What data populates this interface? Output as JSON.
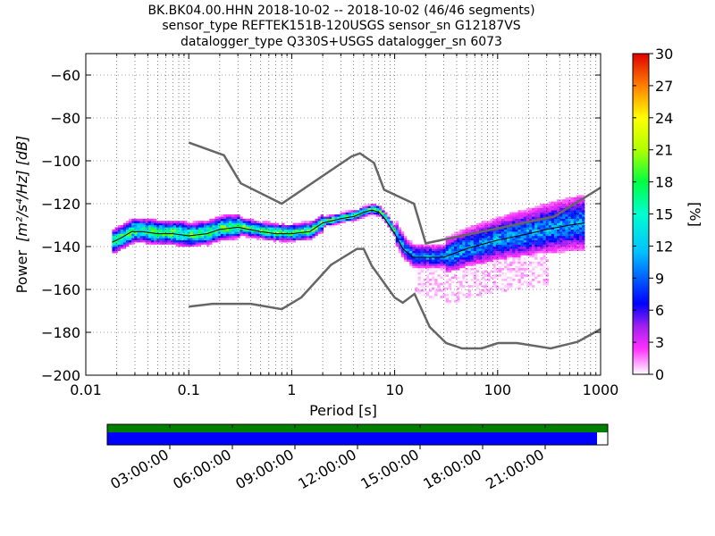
{
  "title_lines": [
    "BK.BK04.00.HHN   2018-10-02 -- 2018-10-02  (46/46 segments)",
    "sensor_type REFTEK151B-120USGS sensor_sn G12187VS",
    "datalogger_type Q330S+USGS datalogger_sn 6073"
  ],
  "colorbar": {
    "label": "[%]",
    "ticks": [
      "0",
      "3",
      "6",
      "9",
      "12",
      "15",
      "18",
      "21",
      "24",
      "27",
      "30"
    ],
    "range": [
      0,
      30
    ]
  },
  "timeline": {
    "labels": [
      "03:00:00",
      "06:00:00",
      "09:00:00",
      "12:00:00",
      "15:00:00",
      "18:00:00",
      "21:00:00"
    ],
    "data_color": "#0000ff",
    "coverage_color": "#007f00"
  },
  "chart_data": {
    "type": "heatmap",
    "xlabel": "Period [s]",
    "ylabel": "Power",
    "ylabel_unit": "[m²/s⁴/Hz] [dB]",
    "xscale": "log",
    "xlim": [
      0.01,
      1000
    ],
    "ylim": [
      -200,
      -50
    ],
    "xticks": [
      0.01,
      0.1,
      1,
      10,
      100,
      1000
    ],
    "xtick_labels": [
      "0.01",
      "0.1",
      "1",
      "10",
      "100",
      "1000"
    ],
    "yticks": [
      -200,
      -180,
      -160,
      -140,
      -120,
      -100,
      -80,
      -60
    ],
    "ytick_labels": [
      "−200",
      "−180",
      "−160",
      "−140",
      "−120",
      "−100",
      "−80",
      "−60"
    ],
    "grid": "dotted, vertical at log subdivisions",
    "noise_models": [
      {
        "name": "NHNM",
        "x": [
          0.1,
          0.22,
          0.32,
          0.8,
          3.8,
          4.6,
          6.3,
          7.9,
          15.4,
          20,
          354.8,
          1000
        ],
        "y": [
          -91.5,
          -97.4,
          -110.5,
          -120,
          -98,
          -96.5,
          -101,
          -113.5,
          -120,
          -138.5,
          -126,
          -112.5
        ]
      },
      {
        "name": "NLNM",
        "x": [
          0.1,
          0.17,
          0.4,
          0.8,
          1.24,
          2.4,
          4.3,
          5,
          6,
          10,
          12,
          15.6,
          21.9,
          31.6,
          45,
          70,
          101,
          154,
          328,
          600,
          1000
        ],
        "y": [
          -168,
          -166.7,
          -166.7,
          -169.2,
          -163.7,
          -148.6,
          -141.1,
          -141.1,
          -149,
          -163.8,
          -166.2,
          -162.1,
          -177.5,
          -185,
          -187.5,
          -187.5,
          -185,
          -185,
          -187.5,
          -184.4,
          -178.5
        ]
      }
    ],
    "mode_curve": {
      "x": [
        0.018,
        0.022,
        0.028,
        0.035,
        0.05,
        0.07,
        0.1,
        0.15,
        0.2,
        0.3,
        0.5,
        0.7,
        1,
        1.5,
        2,
        3,
        4,
        5,
        6,
        7,
        8,
        10,
        12,
        15,
        20,
        30,
        50,
        70,
        100,
        200,
        300,
        500,
        700
      ],
      "y": [
        -138,
        -136,
        -133,
        -133,
        -134,
        -134,
        -135,
        -134,
        -132,
        -131,
        -133,
        -134,
        -134,
        -133,
        -129,
        -127,
        -126,
        -124,
        -123,
        -124,
        -127,
        -134,
        -141,
        -145,
        -145,
        -145,
        -141,
        -139,
        -137,
        -134,
        -132,
        -130,
        -129
      ]
    },
    "max_percent": 30
  }
}
